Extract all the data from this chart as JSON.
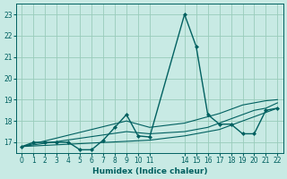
{
  "xlabel": "Humidex (Indice chaleur)",
  "bg_color": "#c8eae4",
  "grid_color": "#99ccbb",
  "line_color": "#006060",
  "xlim": [
    -0.5,
    22.5
  ],
  "ylim": [
    16.5,
    23.5
  ],
  "yticks": [
    17,
    18,
    19,
    20,
    21,
    22,
    23
  ],
  "xtick_positions": [
    0,
    1,
    2,
    3,
    4,
    5,
    6,
    7,
    8,
    9,
    10,
    11,
    14,
    15,
    16,
    17,
    18,
    19,
    20,
    21,
    22
  ],
  "xtick_labels": [
    "0",
    "1",
    "2",
    "3",
    "4",
    "5",
    "6",
    "7",
    "8",
    "9",
    "10",
    "11",
    "14",
    "15",
    "16",
    "17",
    "18",
    "19",
    "20",
    "21",
    "22"
  ],
  "lines": [
    {
      "x": [
        0,
        1,
        2,
        3,
        4,
        5,
        6,
        7,
        8,
        9,
        10,
        11,
        14,
        15,
        16,
        17,
        18,
        19,
        20,
        21,
        22
      ],
      "y": [
        16.8,
        17.0,
        17.0,
        17.0,
        17.0,
        16.65,
        16.65,
        17.1,
        17.7,
        18.3,
        17.3,
        17.25,
        23.0,
        21.5,
        18.3,
        17.85,
        17.85,
        17.4,
        17.4,
        18.5,
        18.6
      ],
      "marker": "D",
      "markersize": 2.0,
      "linewidth": 1.0
    },
    {
      "x": [
        0,
        11,
        14,
        17,
        18,
        19,
        20,
        21,
        22
      ],
      "y": [
        16.8,
        17.1,
        17.3,
        17.6,
        17.8,
        18.0,
        18.2,
        18.4,
        18.6
      ],
      "marker": null,
      "markersize": 0,
      "linewidth": 0.8
    },
    {
      "x": [
        0,
        9,
        11,
        14,
        16,
        17,
        18,
        19,
        20,
        21,
        22
      ],
      "y": [
        16.8,
        17.5,
        17.4,
        17.5,
        17.7,
        17.9,
        18.1,
        18.3,
        18.5,
        18.6,
        18.85
      ],
      "marker": null,
      "markersize": 0,
      "linewidth": 0.8
    },
    {
      "x": [
        0,
        9,
        11,
        14,
        16,
        17,
        18,
        19,
        20,
        21,
        22
      ],
      "y": [
        16.8,
        18.0,
        17.7,
        17.9,
        18.2,
        18.35,
        18.55,
        18.75,
        18.85,
        18.95,
        19.0
      ],
      "marker": null,
      "markersize": 0,
      "linewidth": 0.8
    }
  ]
}
